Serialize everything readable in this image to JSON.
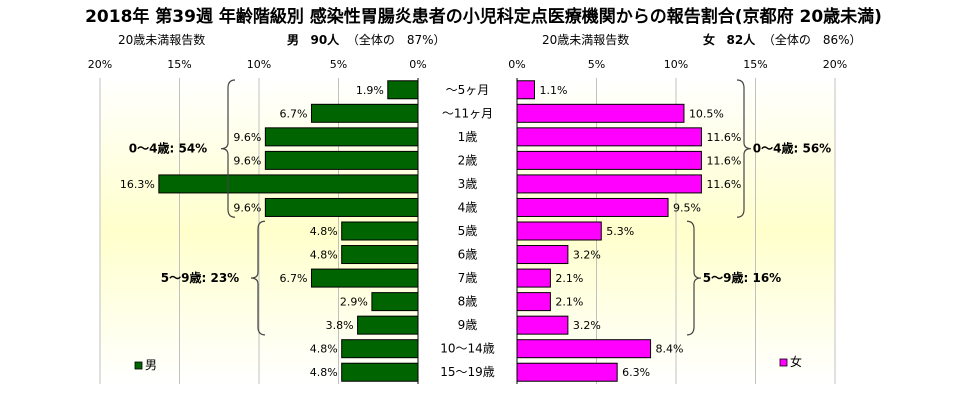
{
  "title": "2018年 第39週 年齢階級別 感染性胃腸炎患者の小児科定点医療機関からの報告割合(京都府 20歳未満)",
  "male_header": {
    "axis_caption": "20歳未満報告数",
    "label": "男",
    "count": "90人",
    "share": "（全体の　87%）"
  },
  "female_header": {
    "axis_caption": "20歳未満報告数",
    "label": "女",
    "count": "82人",
    "share": "（全体の　86%）"
  },
  "chart_data": {
    "type": "bar",
    "orientation": "horizontal-butterfly",
    "categories": [
      "～5ヶ月",
      "～11ヶ月",
      "1歳",
      "2歳",
      "3歳",
      "4歳",
      "5歳",
      "6歳",
      "7歳",
      "8歳",
      "9歳",
      "10～14歳",
      "15～19歳"
    ],
    "series": [
      {
        "name": "男",
        "color": "#006400",
        "values": [
          1.9,
          6.7,
          9.6,
          9.6,
          16.3,
          9.6,
          4.8,
          4.8,
          6.7,
          2.9,
          3.8,
          4.8,
          4.8
        ],
        "labels": [
          "1.9%",
          "6.7%",
          "9.6%",
          "9.6%",
          "16.3%",
          "9.6%",
          "4.8%",
          "4.8%",
          "6.7%",
          "2.9%",
          "3.8%",
          "4.8%",
          "4.8%"
        ]
      },
      {
        "name": "女",
        "color": "#ff00ff",
        "values": [
          1.1,
          10.5,
          11.6,
          11.6,
          11.6,
          9.5,
          5.3,
          3.2,
          2.1,
          2.1,
          3.2,
          8.4,
          6.3
        ],
        "labels": [
          "1.1%",
          "10.5%",
          "11.6%",
          "11.6%",
          "11.6%",
          "9.5%",
          "5.3%",
          "3.2%",
          "2.1%",
          "2.1%",
          "3.2%",
          "8.4%",
          "6.3%"
        ]
      }
    ],
    "xlim": [
      0,
      20
    ],
    "ticks": [
      "20%",
      "15%",
      "10%",
      "5%",
      "0%"
    ],
    "ticks_right": [
      "0%",
      "5%",
      "10%",
      "15%",
      "20%"
    ],
    "male_groups": [
      {
        "label": "0～4歳: 54%",
        "from": 0,
        "to": 5
      },
      {
        "label": "5～9歳: 23%",
        "from": 6,
        "to": 10
      }
    ],
    "female_groups": [
      {
        "label": "0～4歳: 56%",
        "from": 0,
        "to": 5
      },
      {
        "label": "5～9歳: 16%",
        "from": 6,
        "to": 10
      }
    ],
    "legend": {
      "male": "男",
      "female": "女"
    },
    "background_gradient": [
      "#ffffcc",
      "#ffffff"
    ]
  }
}
